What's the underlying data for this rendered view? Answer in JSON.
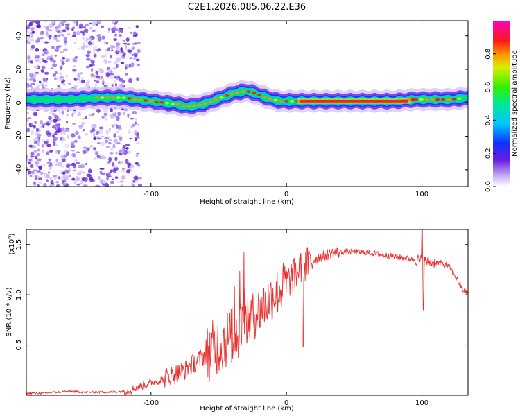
{
  "title": "C2E1.2026.085.06.22.E36",
  "chart_data": [
    {
      "type": "heatmap",
      "title": "C2E1.2026.085.06.22.E36",
      "xlabel": "Height of straight line (km)",
      "ylabel": "Frequency (Hz)",
      "xlim": [
        -192,
        134
      ],
      "ylim": [
        -50,
        49
      ],
      "xticks": [
        -100,
        0,
        100
      ],
      "yticks": [
        -40,
        -20,
        0,
        20,
        40
      ],
      "colorbar": {
        "label": "Normalized spectral amplitude",
        "range": [
          0,
          1
        ],
        "ticks": [
          "0.0",
          "0.2",
          "0.4",
          "0.6",
          "0.8"
        ]
      },
      "ridge": [
        [
          -192,
          2
        ],
        [
          -175,
          2
        ],
        [
          -160,
          2
        ],
        [
          -140,
          3
        ],
        [
          -120,
          3
        ],
        [
          -110,
          2
        ],
        [
          -100,
          1
        ],
        [
          -90,
          0
        ],
        [
          -80,
          -1
        ],
        [
          -75,
          -2
        ],
        [
          -70,
          -2
        ],
        [
          -62,
          -1
        ],
        [
          -55,
          1
        ],
        [
          -45,
          4
        ],
        [
          -38,
          6
        ],
        [
          -30,
          7
        ],
        [
          -24,
          6
        ],
        [
          -18,
          4
        ],
        [
          -10,
          2
        ],
        [
          -5,
          1
        ],
        [
          0,
          1
        ],
        [
          10,
          1
        ],
        [
          20,
          1
        ],
        [
          40,
          1
        ],
        [
          60,
          1
        ],
        [
          80,
          1
        ],
        [
          95,
          2
        ],
        [
          100,
          2
        ],
        [
          110,
          2
        ],
        [
          120,
          2
        ],
        [
          134,
          3
        ]
      ]
    },
    {
      "type": "line",
      "xlabel": "Height of straight line (km)",
      "ylabel": "SNR (10 * v/v)",
      "y_multiplier": "(x10",
      "y_exponent": "4",
      "xlim": [
        -192,
        134
      ],
      "ylim": [
        0,
        1.65
      ],
      "xticks": [
        -100,
        0,
        100
      ],
      "yticks": [
        0.5,
        1.0,
        1.5
      ],
      "ytick_labels": [
        "0.5",
        "1.0",
        "1.5"
      ],
      "series": [
        {
          "name": "SNR",
          "color": "#e8302e",
          "x": [
            -192,
            -180,
            -170,
            -160,
            -150,
            -140,
            -130,
            -120,
            -115,
            -110,
            -105,
            -100,
            -95,
            -90,
            -85,
            -80,
            -75,
            -70,
            -65,
            -60,
            -55,
            -50,
            -45,
            -40,
            -35,
            -30,
            -25,
            -20,
            -15,
            -10,
            -5,
            0,
            5,
            10,
            15,
            20,
            25,
            30,
            35,
            40,
            45,
            50,
            55,
            60,
            65,
            70,
            75,
            80,
            85,
            90,
            95,
            100,
            105,
            110,
            115,
            120,
            125,
            130,
            134
          ],
          "values": [
            0.02,
            0.02,
            0.03,
            0.04,
            0.03,
            0.03,
            0.03,
            0.04,
            0.05,
            0.08,
            0.1,
            0.12,
            0.14,
            0.17,
            0.2,
            0.22,
            0.25,
            0.3,
            0.35,
            0.4,
            0.45,
            0.5,
            0.55,
            0.6,
            0.65,
            0.72,
            0.78,
            0.85,
            0.92,
            1.0,
            1.05,
            1.12,
            1.18,
            1.25,
            1.3,
            1.35,
            1.38,
            1.4,
            1.42,
            1.42,
            1.43,
            1.43,
            1.42,
            1.42,
            1.41,
            1.4,
            1.39,
            1.38,
            1.37,
            1.36,
            1.35,
            1.34,
            1.33,
            1.32,
            1.31,
            1.28,
            1.18,
            1.05,
            1.02
          ]
        }
      ]
    }
  ]
}
